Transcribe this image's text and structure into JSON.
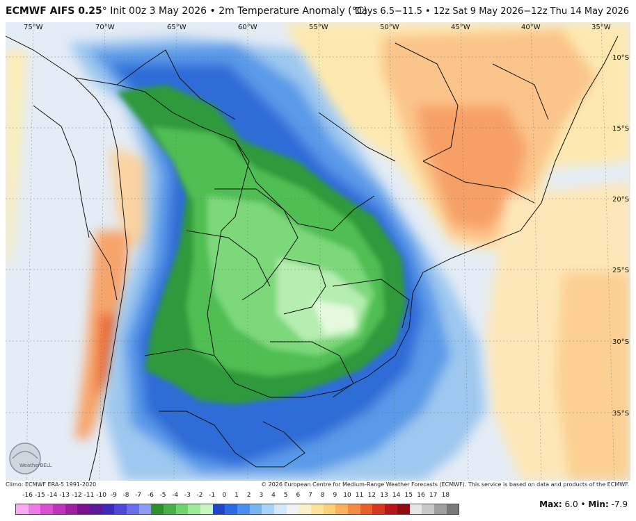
{
  "header": {
    "model": "ECMWF AIFS 0.25",
    "deg": "°",
    "init_text": " Init 00z 3 May 2026 • 2m Temperature Anomaly (°C)",
    "valid_text": "Days 6.5−11.5 • 12z Sat 9 May 2026−12z Thu 14 May 2026"
  },
  "map": {
    "lon_labels": [
      "75°W",
      "70°W",
      "65°W",
      "60°W",
      "55°W",
      "50°W",
      "45°W",
      "40°W",
      "35°W"
    ],
    "lat_labels": [
      "10°S",
      "15°S",
      "20°S",
      "25°S",
      "30°S",
      "35°S"
    ],
    "logo_text": "WeatherBELL"
  },
  "footer": {
    "climo": "Climo: ECMWF ERA-5 1991-2020",
    "copyright": "© 2026 European Centre for Medium-Range Weather Forecasts (ECMWF). This service is based on data and products of the ECMWF."
  },
  "legend": {
    "ticks": [
      "-16",
      "-15",
      "-14",
      "-13",
      "-12",
      "-11",
      "-10",
      "-9",
      "-8",
      "-7",
      "-6",
      "-5",
      "-4",
      "-3",
      "-2",
      "-1",
      "0",
      "1",
      "2",
      "3",
      "4",
      "5",
      "6",
      "7",
      "8",
      "9",
      "10",
      "11",
      "12",
      "13",
      "14",
      "15",
      "16",
      "17",
      "18"
    ],
    "colors": [
      "#f9a9f0",
      "#ee7ae6",
      "#d94fd2",
      "#bf32ba",
      "#a01ea0",
      "#7b1190",
      "#5a1a9b",
      "#3d2ab8",
      "#5046d8",
      "#6b6ee8",
      "#8f9bf0",
      "#2f8f2e",
      "#46b046",
      "#6fd46c",
      "#9ee89a",
      "#c8f5c0",
      "#1e46c8",
      "#2b6be0",
      "#4a8fec",
      "#78b4f2",
      "#a8d3f8",
      "#d2e8fb",
      "#f2f2f2",
      "#fcf0c8",
      "#fde39a",
      "#fdcf78",
      "#fbb25c",
      "#f48c44",
      "#ea5e2c",
      "#d63620",
      "#b4161a",
      "#8e0d12",
      "#e6e6e6",
      "#c8c8c8",
      "#a0a0a0",
      "#787878"
    ],
    "max_label": "Max:",
    "max_value": "6.0",
    "sep": " • ",
    "min_label": "Min:",
    "min_value": "-7.9"
  }
}
